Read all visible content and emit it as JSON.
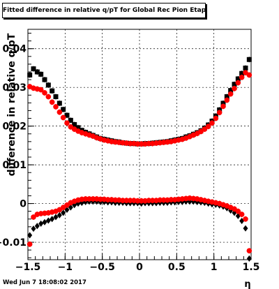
{
  "title": "Fitted difference in relative q/pT for Global Rec Pion Etap T",
  "timestamp": "Wed Jun  7 18:08:02 2017",
  "chart_data": {
    "type": "scatter",
    "xlabel": "η",
    "ylabel": "difference in relative q/pT",
    "xlim": [
      -1.5,
      1.5
    ],
    "ylim": [
      -0.0145,
      0.045
    ],
    "xticks": [
      "−1.5",
      "−1",
      "−0.5",
      "0",
      "0.5",
      "1",
      "1.5"
    ],
    "xtick_values": [
      -1.5,
      -1,
      -0.5,
      0,
      0.5,
      1,
      1.5
    ],
    "yticks": [
      "−0.01",
      "0",
      "0.01",
      "0.02",
      "0.03",
      "0.04"
    ],
    "ytick_values": [
      -0.01,
      0,
      0.01,
      0.02,
      0.03,
      0.04
    ],
    "grid": true,
    "colors": {
      "black": "#000000",
      "red": "#ff0000"
    },
    "series": [
      {
        "marker": "square",
        "color": "#000000",
        "x": [
          -1.475,
          -1.425,
          -1.375,
          -1.325,
          -1.275,
          -1.225,
          -1.175,
          -1.125,
          -1.075,
          -1.025,
          -0.975,
          -0.925,
          -0.875,
          -0.825,
          -0.775,
          -0.725,
          -0.675,
          -0.625,
          -0.575,
          -0.525,
          -0.475,
          -0.425,
          -0.375,
          -0.325,
          -0.275,
          -0.225,
          -0.175,
          -0.125,
          -0.075,
          -0.025,
          0.025,
          0.075,
          0.125,
          0.175,
          0.225,
          0.275,
          0.325,
          0.375,
          0.425,
          0.475,
          0.525,
          0.575,
          0.625,
          0.675,
          0.725,
          0.775,
          0.825,
          0.875,
          0.925,
          0.975,
          1.025,
          1.075,
          1.125,
          1.175,
          1.225,
          1.275,
          1.325,
          1.375,
          1.425,
          1.475
        ],
        "y": [
          0.0332,
          0.0348,
          0.034,
          0.0334,
          0.032,
          0.0306,
          0.0291,
          0.0276,
          0.0259,
          0.0243,
          0.0228,
          0.0215,
          0.0204,
          0.0196,
          0.0189,
          0.0184,
          0.018,
          0.0176,
          0.0172,
          0.0168,
          0.0166,
          0.0164,
          0.0162,
          0.016,
          0.0159,
          0.0157,
          0.0156,
          0.0155,
          0.0155,
          0.0154,
          0.0154,
          0.0155,
          0.0155,
          0.0156,
          0.0157,
          0.0158,
          0.0159,
          0.016,
          0.0162,
          0.0164,
          0.0166,
          0.0168,
          0.0172,
          0.0175,
          0.0179,
          0.0183,
          0.0188,
          0.0195,
          0.0203,
          0.0213,
          0.0226,
          0.0242,
          0.0259,
          0.0276,
          0.0292,
          0.0308,
          0.0322,
          0.0336,
          0.035,
          0.0372
        ]
      },
      {
        "marker": "circle",
        "color": "#ff0000",
        "x": [
          -1.475,
          -1.425,
          -1.375,
          -1.325,
          -1.275,
          -1.225,
          -1.175,
          -1.125,
          -1.075,
          -1.025,
          -0.975,
          -0.925,
          -0.875,
          -0.825,
          -0.775,
          -0.725,
          -0.675,
          -0.625,
          -0.575,
          -0.525,
          -0.475,
          -0.425,
          -0.375,
          -0.325,
          -0.275,
          -0.225,
          -0.175,
          -0.125,
          -0.075,
          -0.025,
          0.025,
          0.075,
          0.125,
          0.175,
          0.225,
          0.275,
          0.325,
          0.375,
          0.425,
          0.475,
          0.525,
          0.575,
          0.625,
          0.675,
          0.725,
          0.775,
          0.825,
          0.875,
          0.925,
          0.975,
          1.025,
          1.075,
          1.125,
          1.175,
          1.225,
          1.275,
          1.325,
          1.375,
          1.425,
          1.475
        ],
        "y": [
          0.0302,
          0.0298,
          0.0296,
          0.0294,
          0.0286,
          0.0276,
          0.0262,
          0.025,
          0.0236,
          0.0222,
          0.0208,
          0.0198,
          0.0192,
          0.0187,
          0.0183,
          0.018,
          0.0177,
          0.0174,
          0.017,
          0.0167,
          0.0164,
          0.0162,
          0.016,
          0.0159,
          0.0158,
          0.0157,
          0.0156,
          0.0155,
          0.0155,
          0.0154,
          0.0154,
          0.0154,
          0.0155,
          0.0155,
          0.0156,
          0.0157,
          0.0158,
          0.0159,
          0.016,
          0.0162,
          0.0164,
          0.0166,
          0.0169,
          0.0173,
          0.0177,
          0.0181,
          0.0186,
          0.0192,
          0.0199,
          0.0208,
          0.022,
          0.0235,
          0.0251,
          0.0267,
          0.0283,
          0.0297,
          0.0312,
          0.0326,
          0.0338,
          0.0332
        ]
      },
      {
        "marker": "diamond",
        "color": "#000000",
        "x": [
          -1.475,
          -1.425,
          -1.375,
          -1.325,
          -1.275,
          -1.225,
          -1.175,
          -1.125,
          -1.075,
          -1.025,
          -0.975,
          -0.925,
          -0.875,
          -0.825,
          -0.775,
          -0.725,
          -0.675,
          -0.625,
          -0.575,
          -0.525,
          -0.475,
          -0.425,
          -0.375,
          -0.325,
          -0.275,
          -0.225,
          -0.175,
          -0.125,
          -0.075,
          -0.025,
          0.025,
          0.075,
          0.125,
          0.175,
          0.225,
          0.275,
          0.325,
          0.375,
          0.425,
          0.475,
          0.525,
          0.575,
          0.625,
          0.675,
          0.725,
          0.775,
          0.825,
          0.875,
          0.925,
          0.975,
          1.025,
          1.075,
          1.125,
          1.175,
          1.225,
          1.275,
          1.325,
          1.375,
          1.425,
          1.475
        ],
        "y": [
          -0.0082,
          -0.0065,
          -0.0058,
          -0.0052,
          -0.0048,
          -0.0044,
          -0.004,
          -0.0035,
          -0.003,
          -0.0024,
          -0.0016,
          -0.001,
          -0.0004,
          0.0,
          0.0002,
          0.0004,
          0.0005,
          0.0005,
          0.0005,
          0.0004,
          0.0004,
          0.0003,
          0.0003,
          0.0002,
          0.0002,
          0.0002,
          0.0001,
          0.0001,
          0.0001,
          0.0001,
          0.0,
          0.0001,
          0.0001,
          0.0001,
          0.0001,
          0.0002,
          0.0002,
          0.0002,
          0.0003,
          0.0003,
          0.0004,
          0.0004,
          0.0005,
          0.0005,
          0.0005,
          0.0004,
          0.0003,
          0.0002,
          0.0,
          -0.0002,
          -0.0003,
          -0.0005,
          -0.0008,
          -0.0012,
          -0.0018,
          -0.0024,
          -0.0032,
          -0.0045,
          -0.0064,
          -0.0142
        ]
      },
      {
        "marker": "circle",
        "color": "#ff0000",
        "x": [
          -1.475,
          -1.425,
          -1.375,
          -1.325,
          -1.275,
          -1.225,
          -1.175,
          -1.125,
          -1.075,
          -1.025,
          -0.975,
          -0.925,
          -0.875,
          -0.825,
          -0.775,
          -0.725,
          -0.675,
          -0.625,
          -0.575,
          -0.525,
          -0.475,
          -0.425,
          -0.375,
          -0.325,
          -0.275,
          -0.225,
          -0.175,
          -0.125,
          -0.075,
          -0.025,
          0.025,
          0.075,
          0.125,
          0.175,
          0.225,
          0.275,
          0.325,
          0.375,
          0.425,
          0.475,
          0.525,
          0.575,
          0.625,
          0.675,
          0.725,
          0.775,
          0.825,
          0.875,
          0.925,
          0.975,
          1.025,
          1.075,
          1.125,
          1.175,
          1.225,
          1.275,
          1.325,
          1.375,
          1.425,
          1.475
        ],
        "y": [
          -0.0105,
          -0.0035,
          -0.0028,
          -0.0026,
          -0.0025,
          -0.0024,
          -0.0022,
          -0.002,
          -0.0016,
          -0.001,
          -0.0004,
          0.0002,
          0.0006,
          0.0009,
          0.0011,
          0.0012,
          0.0012,
          0.0012,
          0.0012,
          0.0011,
          0.0011,
          0.001,
          0.001,
          0.0009,
          0.0009,
          0.0008,
          0.0008,
          0.0008,
          0.0008,
          0.0007,
          0.0007,
          0.0007,
          0.0008,
          0.0008,
          0.0008,
          0.0009,
          0.0009,
          0.0009,
          0.001,
          0.001,
          0.0011,
          0.0012,
          0.0013,
          0.0014,
          0.0013,
          0.0012,
          0.001,
          0.0008,
          0.0006,
          0.0004,
          0.0002,
          0.0,
          -0.0003,
          -0.0006,
          -0.001,
          -0.0014,
          -0.002,
          -0.0028,
          -0.004,
          -0.0122
        ]
      }
    ]
  }
}
